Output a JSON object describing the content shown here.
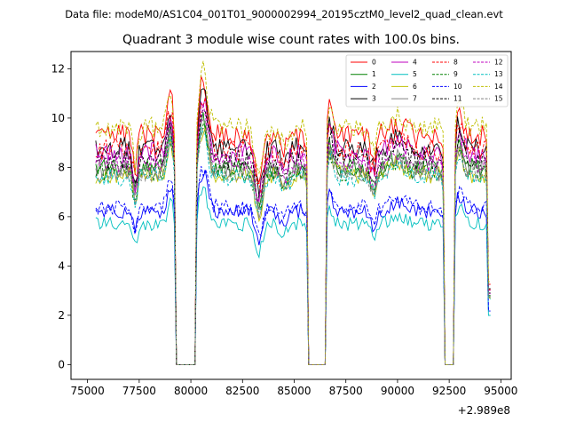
{
  "figure": {
    "suptitle": "Data file: modeM0/AS1C04_001T01_9000002994_20195cztM0_level2_quad_clean.evt",
    "offset_label": "+2.989e8"
  },
  "chart_data": {
    "type": "line",
    "title": "Quadrant 3 module wise count rates with 100.0s bins.",
    "xlabel": "",
    "ylabel": "",
    "x_offset": 298900000,
    "xlim": [
      74200,
      95500
    ],
    "ylim": [
      -0.6,
      12.7
    ],
    "x_ticks": [
      75000,
      77500,
      80000,
      82500,
      85000,
      87500,
      90000,
      92500,
      95000
    ],
    "x_tick_labels": [
      "75000",
      "77500",
      "80000",
      "82500",
      "85000",
      "87500",
      "90000",
      "92500",
      "95000"
    ],
    "y_ticks": [
      0,
      2,
      4,
      6,
      8,
      10,
      12
    ],
    "y_tick_labels": [
      "0",
      "2",
      "4",
      "6",
      "8",
      "10",
      "12"
    ],
    "legend_position": "top-right",
    "gaps": [
      {
        "start": 79250,
        "end": 80250
      },
      {
        "start": 85650,
        "end": 86550
      },
      {
        "start": 92250,
        "end": 92750
      }
    ],
    "series": [
      {
        "name": "0",
        "color": "#ff0000",
        "dash": "solid",
        "base": 9.3
      },
      {
        "name": "1",
        "color": "#008000",
        "dash": "solid",
        "base": 8.0
      },
      {
        "name": "2",
        "color": "#0000ff",
        "dash": "solid",
        "base": 6.2
      },
      {
        "name": "3",
        "color": "#000000",
        "dash": "solid",
        "base": 8.8
      },
      {
        "name": "4",
        "color": "#bf00bf",
        "dash": "solid",
        "base": 8.6
      },
      {
        "name": "5",
        "color": "#00bfbf",
        "dash": "solid",
        "base": 5.7
      },
      {
        "name": "6",
        "color": "#bfbf00",
        "dash": "solid",
        "base": 7.7
      },
      {
        "name": "7",
        "color": "#808080",
        "dash": "solid",
        "base": 7.9
      },
      {
        "name": "8",
        "color": "#ff0000",
        "dash": "dashed",
        "base": 8.7
      },
      {
        "name": "9",
        "color": "#008000",
        "dash": "dashed",
        "base": 7.8
      },
      {
        "name": "10",
        "color": "#0000ff",
        "dash": "dashed",
        "base": 6.4
      },
      {
        "name": "11",
        "color": "#000000",
        "dash": "dashed",
        "base": 8.3
      },
      {
        "name": "12",
        "color": "#bf00bf",
        "dash": "dashed",
        "base": 8.2
      },
      {
        "name": "13",
        "color": "#00bfbf",
        "dash": "dashed",
        "base": 7.6
      },
      {
        "name": "14",
        "color": "#bfbf00",
        "dash": "dashed",
        "base": 9.6
      },
      {
        "name": "15",
        "color": "#808080",
        "dash": "dashed",
        "base": 7.8
      }
    ]
  }
}
